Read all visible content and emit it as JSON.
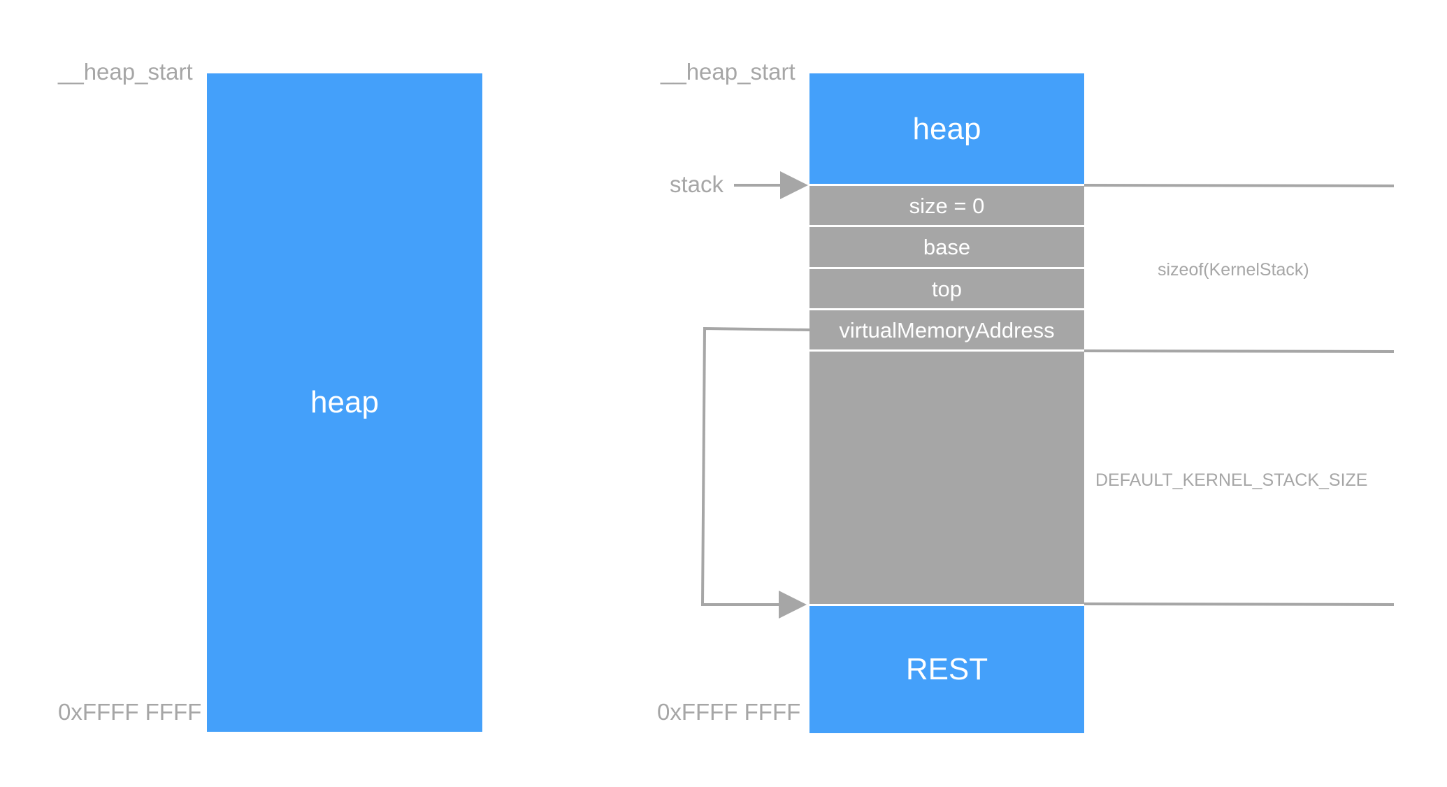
{
  "left": {
    "start_label": "__heap_start",
    "end_label": "0xFFFF FFFF",
    "heap_label": "heap"
  },
  "right": {
    "start_label": "__heap_start",
    "end_label": "0xFFFF FFFF",
    "heap_label": "heap",
    "stack_pointer_label": "stack",
    "fields": [
      "size = 0",
      "base",
      "top",
      "virtualMemoryAddress"
    ],
    "rest_label": "REST"
  },
  "brackets": {
    "struct_size": "sizeof(KernelStack)",
    "stack_size": "DEFAULT_KERNEL_STACK_SIZE"
  },
  "colors": {
    "heap_blue": "#44a0fa",
    "stack_gray": "#a6a6a6",
    "label_gray": "#a6a6a6"
  }
}
